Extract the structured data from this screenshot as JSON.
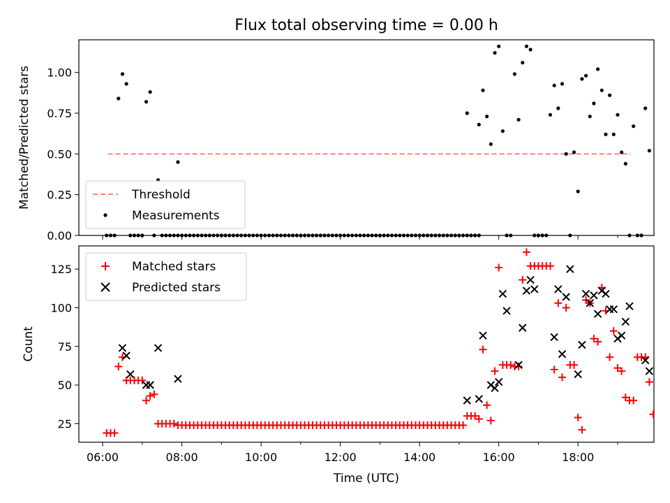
{
  "figure_title": "Flux total observing time = 0.00 h",
  "x_axis_label": "Time (UTC)",
  "chart_data": [
    {
      "type": "scatter",
      "title": "Flux total observing time = 0.00 h",
      "xlabel": "",
      "ylabel": "Matched/Predicted stars",
      "ylim": [
        0,
        1.2
      ],
      "xlim": [
        "05:24",
        "19:55"
      ],
      "yticks": [
        "0.00",
        "0.25",
        "0.50",
        "0.75",
        "1.00"
      ],
      "xticks": [
        "06:00",
        "08:00",
        "10:00",
        "12:00",
        "14:00",
        "16:00",
        "18:00"
      ],
      "grid": false,
      "legend_position": "lower-left",
      "series": [
        {
          "name": "Threshold",
          "style": "dashed-line",
          "color": "#ff7f7f",
          "x": [
            "06:08",
            "19:20"
          ],
          "y": [
            0.5,
            0.5
          ]
        },
        {
          "name": "Measurements",
          "style": "dot",
          "color": "#000000",
          "points": [
            [
              "06:06",
              0
            ],
            [
              "06:12",
              0
            ],
            [
              "06:18",
              0
            ],
            [
              "06:24",
              0.84
            ],
            [
              "06:30",
              0.99
            ],
            [
              "06:36",
              0.93
            ],
            [
              "06:42",
              0
            ],
            [
              "06:48",
              0
            ],
            [
              "06:54",
              0
            ],
            [
              "07:00",
              0
            ],
            [
              "07:06",
              0.82
            ],
            [
              "07:12",
              0.88
            ],
            [
              "07:18",
              0
            ],
            [
              "07:24",
              0.34
            ],
            [
              "07:30",
              0
            ],
            [
              "07:36",
              0
            ],
            [
              "07:42",
              0
            ],
            [
              "07:48",
              0
            ],
            [
              "07:54",
              0.45
            ],
            [
              "15:12",
              0.75
            ],
            [
              "15:18",
              0
            ],
            [
              "15:24",
              0
            ],
            [
              "15:30",
              0.68
            ],
            [
              "15:36",
              0.89
            ],
            [
              "15:42",
              0.73
            ],
            [
              "15:48",
              0.56
            ],
            [
              "15:54",
              1.12
            ],
            [
              "16:00",
              1.16
            ],
            [
              "16:06",
              0.64
            ],
            [
              "16:12",
              0
            ],
            [
              "16:18",
              0
            ],
            [
              "16:24",
              0.99
            ],
            [
              "16:30",
              0.71
            ],
            [
              "16:36",
              1.06
            ],
            [
              "16:42",
              1.16
            ],
            [
              "16:48",
              1.14
            ],
            [
              "16:54",
              0
            ],
            [
              "17:00",
              0
            ],
            [
              "17:06",
              0
            ],
            [
              "17:12",
              0
            ],
            [
              "17:18",
              0.74
            ],
            [
              "17:24",
              0.92
            ],
            [
              "17:30",
              0.78
            ],
            [
              "17:36",
              0.93
            ],
            [
              "17:42",
              0.5
            ],
            [
              "17:48",
              0
            ],
            [
              "17:54",
              0.51
            ],
            [
              "18:00",
              0.27
            ],
            [
              "18:06",
              0.96
            ],
            [
              "18:12",
              0.98
            ],
            [
              "18:18",
              0.73
            ],
            [
              "18:24",
              0.81
            ],
            [
              "18:30",
              1.02
            ],
            [
              "18:36",
              0.89
            ],
            [
              "18:42",
              0.62
            ],
            [
              "18:48",
              0.86
            ],
            [
              "18:54",
              0.62
            ],
            [
              "19:00",
              0.74
            ],
            [
              "19:06",
              0.51
            ],
            [
              "19:12",
              0.44
            ],
            [
              "19:18",
              0
            ],
            [
              "19:24",
              0.67
            ],
            [
              "19:30",
              0
            ],
            [
              "19:36",
              0
            ],
            [
              "19:42",
              0.78
            ],
            [
              "19:48",
              0.52
            ]
          ],
          "zero_run": {
            "from": "07:54",
            "to": "15:30",
            "step_minutes": 6,
            "y": 0
          }
        }
      ]
    },
    {
      "type": "scatter",
      "title": "",
      "xlabel": "Time (UTC)",
      "ylabel": "Count",
      "ylim": [
        13,
        140
      ],
      "xlim": [
        "05:24",
        "19:55"
      ],
      "yticks": [
        "25",
        "50",
        "75",
        "100",
        "125"
      ],
      "xticks": [
        "06:00",
        "08:00",
        "10:00",
        "12:00",
        "14:00",
        "16:00",
        "18:00"
      ],
      "grid": false,
      "legend_position": "upper-left",
      "series": [
        {
          "name": "Matched stars",
          "marker": "+",
          "color": "#ff0000",
          "points": [
            [
              "06:06",
              19
            ],
            [
              "06:12",
              19
            ],
            [
              "06:18",
              19
            ],
            [
              "06:24",
              62
            ],
            [
              "06:30",
              68
            ],
            [
              "06:36",
              53
            ],
            [
              "06:42",
              53
            ],
            [
              "06:48",
              53
            ],
            [
              "06:54",
              53
            ],
            [
              "07:00",
              53
            ],
            [
              "07:06",
              40
            ],
            [
              "07:12",
              43
            ],
            [
              "07:18",
              44
            ],
            [
              "07:24",
              25
            ],
            [
              "07:30",
              25
            ],
            [
              "07:36",
              25
            ],
            [
              "07:42",
              25
            ],
            [
              "07:48",
              25
            ],
            [
              "15:12",
              30
            ],
            [
              "15:18",
              30
            ],
            [
              "15:24",
              30
            ],
            [
              "15:30",
              28
            ],
            [
              "15:36",
              73
            ],
            [
              "15:42",
              37
            ],
            [
              "15:48",
              27
            ],
            [
              "15:54",
              59
            ],
            [
              "16:00",
              126
            ],
            [
              "16:06",
              63
            ],
            [
              "16:12",
              63
            ],
            [
              "16:18",
              63
            ],
            [
              "16:24",
              62
            ],
            [
              "16:30",
              62
            ],
            [
              "16:36",
              118
            ],
            [
              "16:42",
              136
            ],
            [
              "16:48",
              127
            ],
            [
              "16:54",
              127
            ],
            [
              "17:00",
              127
            ],
            [
              "17:06",
              127
            ],
            [
              "17:12",
              127
            ],
            [
              "17:18",
              127
            ],
            [
              "17:24",
              60
            ],
            [
              "17:30",
              103
            ],
            [
              "17:36",
              55
            ],
            [
              "17:42",
              100
            ],
            [
              "17:48",
              63
            ],
            [
              "17:54",
              63
            ],
            [
              "18:00",
              29
            ],
            [
              "18:06",
              21
            ],
            [
              "18:12",
              105
            ],
            [
              "18:18",
              103
            ],
            [
              "18:24",
              80
            ],
            [
              "18:30",
              78
            ],
            [
              "18:36",
              113
            ],
            [
              "18:42",
              98
            ],
            [
              "18:48",
              68
            ],
            [
              "18:54",
              85
            ],
            [
              "19:00",
              61
            ],
            [
              "19:06",
              59
            ],
            [
              "19:12",
              42
            ],
            [
              "19:18",
              40
            ],
            [
              "19:24",
              40
            ],
            [
              "19:30",
              68
            ],
            [
              "19:36",
              68
            ],
            [
              "19:42",
              68
            ],
            [
              "19:48",
              52
            ],
            [
              "19:54",
              31
            ]
          ],
          "constant_run": {
            "from": "07:54",
            "to": "15:06",
            "step_minutes": 6,
            "y": 24
          }
        },
        {
          "name": "Predicted stars",
          "marker": "x",
          "color": "#000000",
          "points": [
            [
              "06:30",
              74
            ],
            [
              "06:36",
              69
            ],
            [
              "06:42",
              57
            ],
            [
              "07:06",
              50
            ],
            [
              "07:12",
              50
            ],
            [
              "07:24",
              74
            ],
            [
              "07:54",
              54
            ],
            [
              "15:12",
              40
            ],
            [
              "15:30",
              41
            ],
            [
              "15:36",
              82
            ],
            [
              "15:48",
              50
            ],
            [
              "15:54",
              48
            ],
            [
              "16:00",
              52
            ],
            [
              "16:06",
              109
            ],
            [
              "16:12",
              98
            ],
            [
              "16:30",
              63
            ],
            [
              "16:36",
              87
            ],
            [
              "16:42",
              111
            ],
            [
              "16:48",
              118
            ],
            [
              "16:54",
              112
            ],
            [
              "17:24",
              81
            ],
            [
              "17:30",
              112
            ],
            [
              "17:36",
              70
            ],
            [
              "17:42",
              107
            ],
            [
              "17:48",
              125
            ],
            [
              "18:00",
              57
            ],
            [
              "18:06",
              76
            ],
            [
              "18:12",
              109
            ],
            [
              "18:18",
              103
            ],
            [
              "18:24",
              108
            ],
            [
              "18:30",
              96
            ],
            [
              "18:36",
              111
            ],
            [
              "18:42",
              109
            ],
            [
              "18:48",
              99
            ],
            [
              "18:54",
              99
            ],
            [
              "19:00",
              80
            ],
            [
              "19:06",
              82
            ],
            [
              "19:12",
              91
            ],
            [
              "19:18",
              101
            ],
            [
              "19:42",
              66
            ],
            [
              "19:48",
              59
            ]
          ]
        }
      ]
    }
  ]
}
